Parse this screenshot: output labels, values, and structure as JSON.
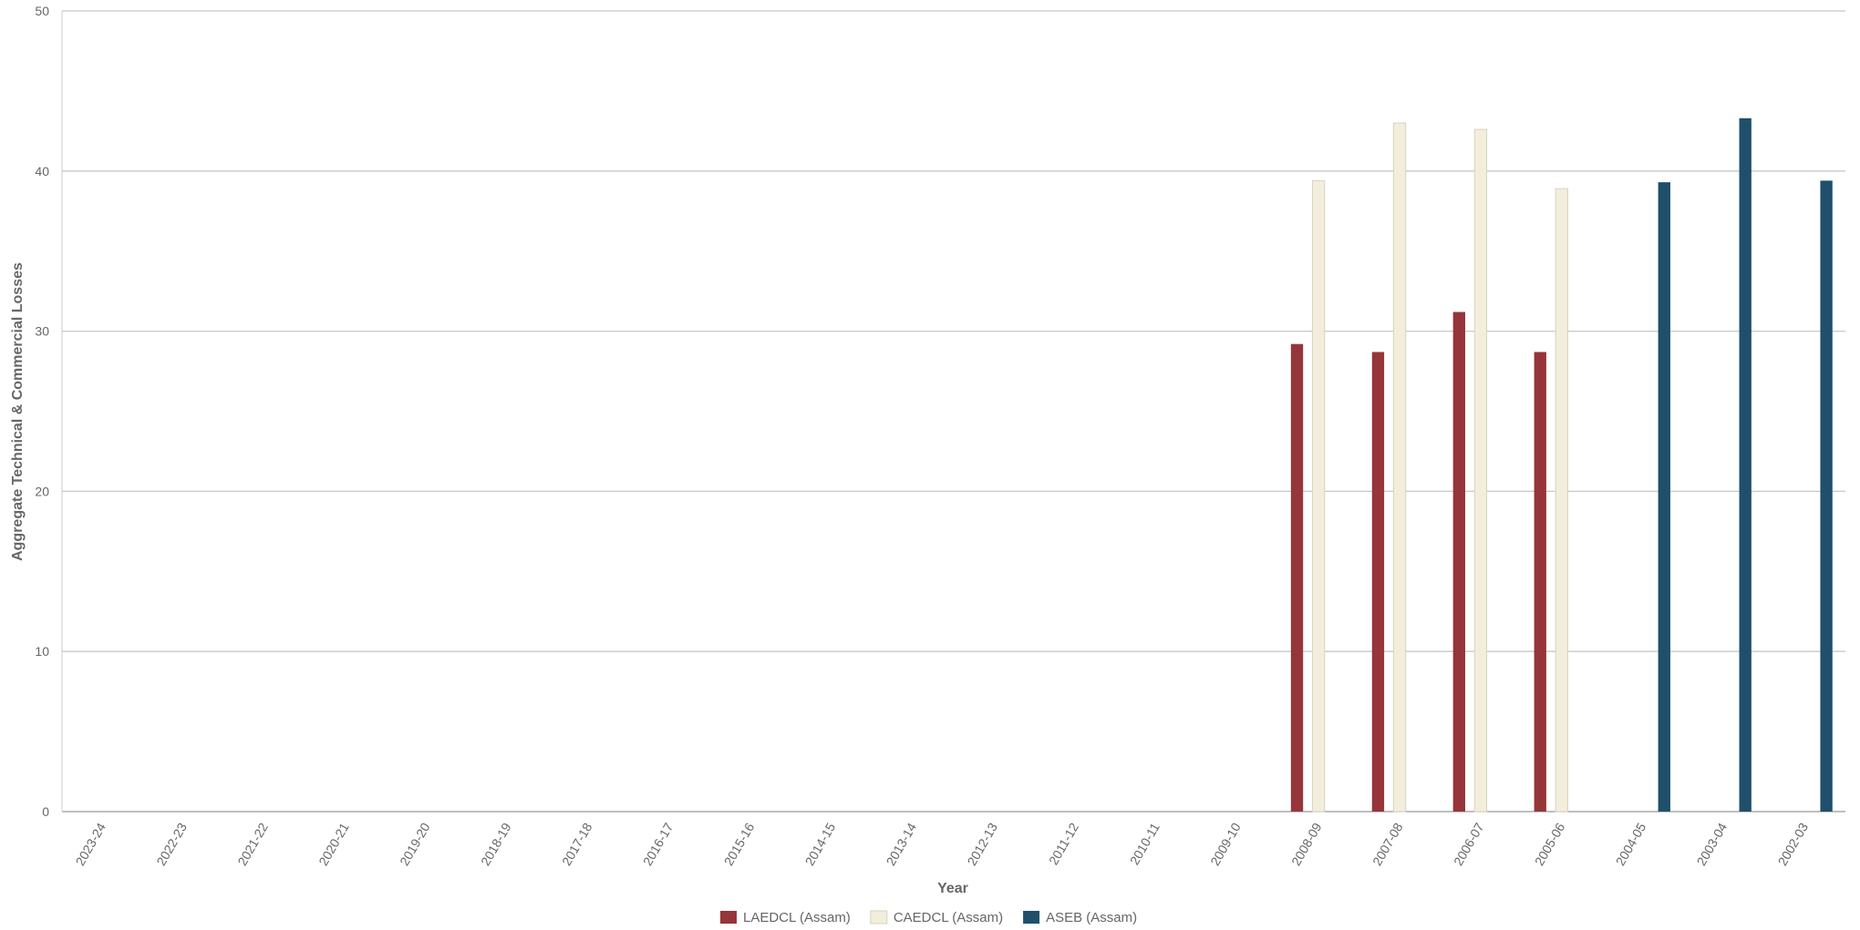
{
  "chart_data": {
    "type": "bar",
    "x_label": "Year",
    "y_label": "Aggregate Technical & Commercial Losses",
    "categories": [
      "2023-24",
      "2022-23",
      "2021-22",
      "2020-21",
      "2019-20",
      "2018-19",
      "2017-18",
      "2016-17",
      "2015-16",
      "2014-15",
      "2013-14",
      "2012-13",
      "2011-12",
      "2010-11",
      "2009-10",
      "2008-09",
      "2007-08",
      "2006-07",
      "2005-06",
      "2004-05",
      "2003-04",
      "2002-03"
    ],
    "series": [
      {
        "name": "LAEDCL (Assam)",
        "color": "#96353a",
        "values": [
          null,
          null,
          null,
          null,
          null,
          null,
          null,
          null,
          null,
          null,
          null,
          null,
          null,
          null,
          null,
          29.2,
          28.7,
          31.2,
          28.7,
          null,
          null,
          null
        ]
      },
      {
        "name": "CAEDCL (Assam)",
        "color": "#f3eedb",
        "values": [
          null,
          null,
          null,
          null,
          null,
          null,
          null,
          null,
          null,
          null,
          null,
          null,
          null,
          null,
          null,
          39.4,
          43.0,
          42.6,
          38.9,
          null,
          null,
          null
        ]
      },
      {
        "name": "ASEB (Assam)",
        "color": "#1f4f6b",
        "values": [
          null,
          null,
          null,
          null,
          null,
          null,
          null,
          null,
          null,
          null,
          null,
          null,
          null,
          null,
          null,
          null,
          null,
          null,
          null,
          39.3,
          43.3,
          39.4
        ]
      }
    ],
    "ylim": [
      0,
      50
    ],
    "yticks": [
      0,
      10,
      20,
      30,
      40,
      50
    ],
    "grid": true,
    "legend": "bottom"
  }
}
